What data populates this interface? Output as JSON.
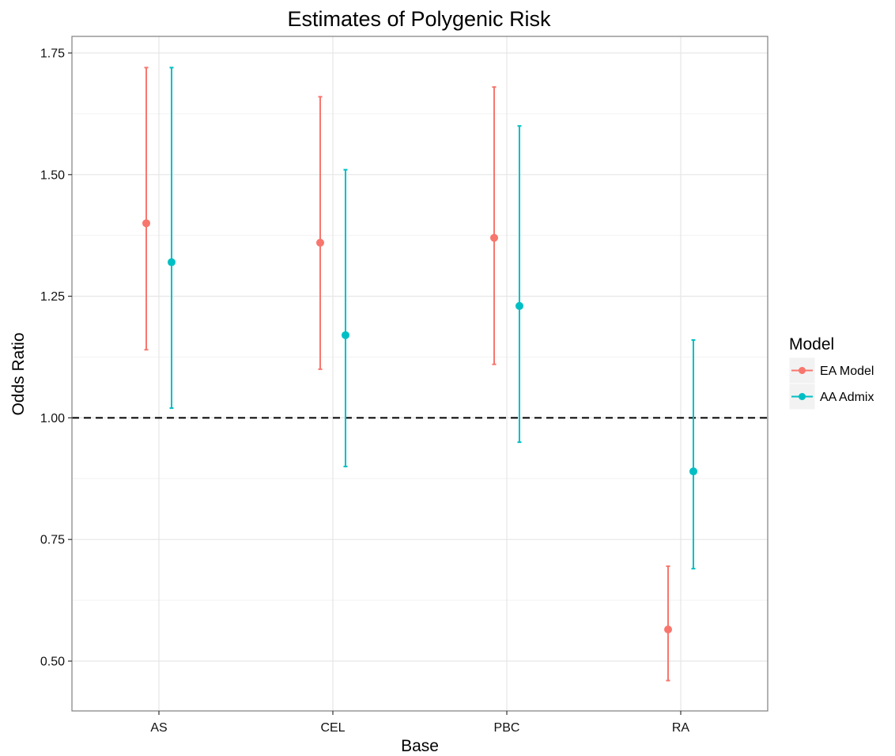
{
  "chart_data": {
    "type": "errorbar",
    "title": "Estimates of Polygenic Risk",
    "xlabel": "Base",
    "ylabel": "Odds Ratio",
    "categories": [
      "AS",
      "CEL",
      "PBC",
      "RA"
    ],
    "ylim": [
      0.44,
      1.78
    ],
    "yticks": [
      0.5,
      0.75,
      1.0,
      1.25,
      1.5,
      1.75
    ],
    "ytick_labels": [
      "0.50",
      "0.75",
      "1.00",
      "1.25",
      "1.50",
      "1.75"
    ],
    "reference_line": 1.0,
    "grid": true,
    "legend": {
      "title": "Model",
      "position": "right"
    },
    "series": [
      {
        "name": "EA Model",
        "color": "#F8766D",
        "estimate": [
          1.4,
          1.36,
          1.37,
          0.565
        ],
        "lower": [
          1.14,
          1.1,
          1.11,
          0.46
        ],
        "upper": [
          1.72,
          1.66,
          1.68,
          0.695
        ]
      },
      {
        "name": "AA Admix",
        "color": "#00BFC4",
        "estimate": [
          1.32,
          1.17,
          1.23,
          0.89
        ],
        "lower": [
          1.02,
          0.9,
          0.95,
          0.69
        ],
        "upper": [
          1.72,
          1.51,
          1.6,
          1.16
        ]
      }
    ]
  }
}
